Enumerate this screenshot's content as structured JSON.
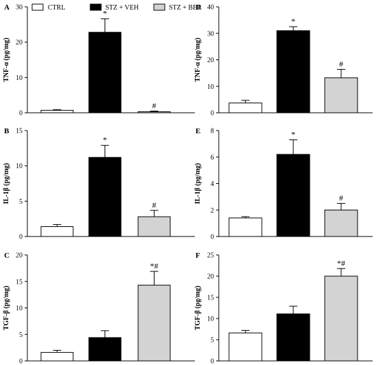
{
  "legend": [
    {
      "label": "CTRL",
      "color": "#ffffff"
    },
    {
      "label": "STZ + VEH",
      "color": "#000000"
    },
    {
      "label": "STZ + BER",
      "color": "#d3d3d3"
    }
  ],
  "chart_data": [
    {
      "type": "bar",
      "panel": "A",
      "ylabel": "TNF-α (pg/mg)",
      "ylim": [
        0,
        30
      ],
      "yticks": [
        0,
        10,
        20,
        30
      ],
      "categories": [
        "CTRL",
        "STZ + VEH",
        "STZ + BER"
      ],
      "values": [
        0.7,
        22.8,
        0.3
      ],
      "errors": [
        0.2,
        3.8,
        0.2
      ],
      "annotations": [
        "",
        "*",
        "#"
      ]
    },
    {
      "type": "bar",
      "panel": "B",
      "ylabel": "IL-1β (pg/mg)",
      "ylim": [
        0,
        15
      ],
      "yticks": [
        0,
        5,
        10,
        15
      ],
      "categories": [
        "CTRL",
        "STZ + VEH",
        "STZ + BER"
      ],
      "values": [
        1.4,
        11.2,
        2.8
      ],
      "errors": [
        0.3,
        1.7,
        0.9
      ],
      "annotations": [
        "",
        "*",
        "#"
      ]
    },
    {
      "type": "bar",
      "panel": "C",
      "ylabel": "TGF-β (pg/mg)",
      "ylim": [
        0,
        20
      ],
      "yticks": [
        0,
        5,
        10,
        15,
        20
      ],
      "categories": [
        "CTRL",
        "STZ + VEH",
        "STZ + BER"
      ],
      "values": [
        1.6,
        4.4,
        14.3
      ],
      "errors": [
        0.4,
        1.3,
        2.6
      ],
      "annotations": [
        "",
        "",
        "*#"
      ]
    },
    {
      "type": "bar",
      "panel": "D",
      "ylabel": "TNF-α (pg/mg)",
      "ylim": [
        0,
        40
      ],
      "yticks": [
        0,
        10,
        20,
        30,
        40
      ],
      "categories": [
        "CTRL",
        "STZ + VEH",
        "STZ + BER"
      ],
      "values": [
        3.7,
        31.0,
        13.2
      ],
      "errors": [
        1.0,
        1.5,
        3.2
      ],
      "annotations": [
        "",
        "*",
        "#"
      ]
    },
    {
      "type": "bar",
      "panel": "E",
      "ylabel": "IL-1β (pg/mg)",
      "ylim": [
        0,
        8
      ],
      "yticks": [
        0,
        2,
        4,
        6,
        8
      ],
      "categories": [
        "CTRL",
        "STZ + VEH",
        "STZ + BER"
      ],
      "values": [
        1.4,
        6.2,
        2.0
      ],
      "errors": [
        0.1,
        1.1,
        0.5
      ],
      "annotations": [
        "",
        "*",
        "#"
      ]
    },
    {
      "type": "bar",
      "panel": "F",
      "ylabel": "TGF-β (pg/mg)",
      "ylim": [
        0,
        25
      ],
      "yticks": [
        0,
        5,
        10,
        15,
        20,
        25
      ],
      "categories": [
        "CTRL",
        "STZ + VEH",
        "STZ + BER"
      ],
      "values": [
        6.6,
        11.1,
        20.0
      ],
      "errors": [
        0.6,
        1.8,
        1.8
      ],
      "annotations": [
        "",
        "",
        "*#"
      ]
    }
  ]
}
